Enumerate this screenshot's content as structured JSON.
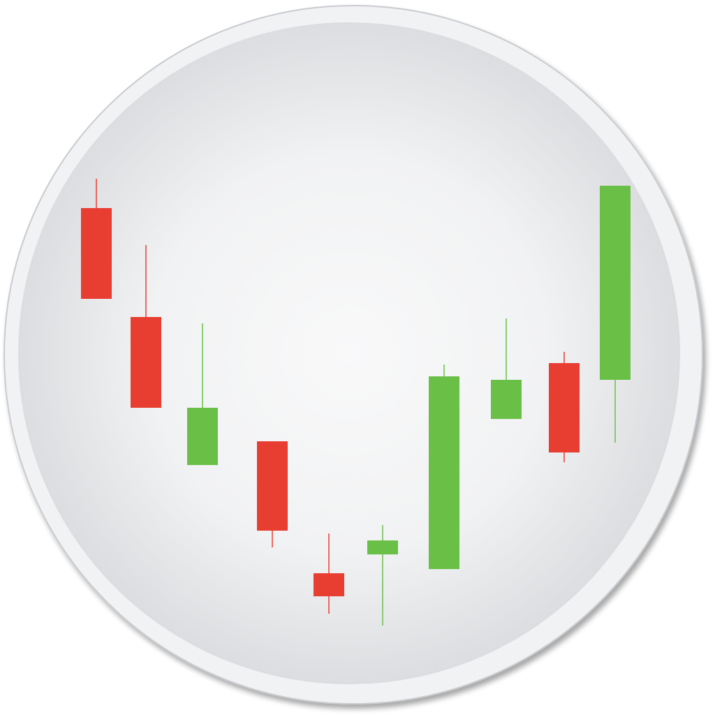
{
  "app_icon": {
    "name": "candlestick-chart-app-icon",
    "colors": {
      "bullish": "#6abf47",
      "bearish": "#e83d31",
      "plate_outer": "#f1f2f4",
      "plate_rim": "#c9cbcf",
      "dial_center": "#f8f8f9",
      "dial_edge": "#dedfe2"
    },
    "candles": [
      {
        "direction": "bearish",
        "open": 726,
        "high": 768,
        "low": 596,
        "close": 596
      },
      {
        "direction": "bearish",
        "open": 570,
        "high": 673,
        "low": 440,
        "close": 440
      },
      {
        "direction": "bullish",
        "open": 358,
        "high": 561,
        "low": 358,
        "close": 440
      },
      {
        "direction": "bearish",
        "open": 392,
        "high": 392,
        "low": 240,
        "close": 264
      },
      {
        "direction": "bearish",
        "open": 203,
        "high": 260,
        "low": 145,
        "close": 170
      },
      {
        "direction": "bullish",
        "open": 230,
        "high": 272,
        "low": 128,
        "close": 250
      },
      {
        "direction": "bullish",
        "open": 209,
        "high": 502,
        "low": 209,
        "close": 485
      },
      {
        "direction": "bullish",
        "open": 424,
        "high": 568,
        "low": 424,
        "close": 480
      },
      {
        "direction": "bearish",
        "open": 504,
        "high": 520,
        "low": 362,
        "close": 376
      },
      {
        "direction": "bullish",
        "open": 480,
        "high": 758,
        "low": 390,
        "close": 758
      }
    ]
  }
}
